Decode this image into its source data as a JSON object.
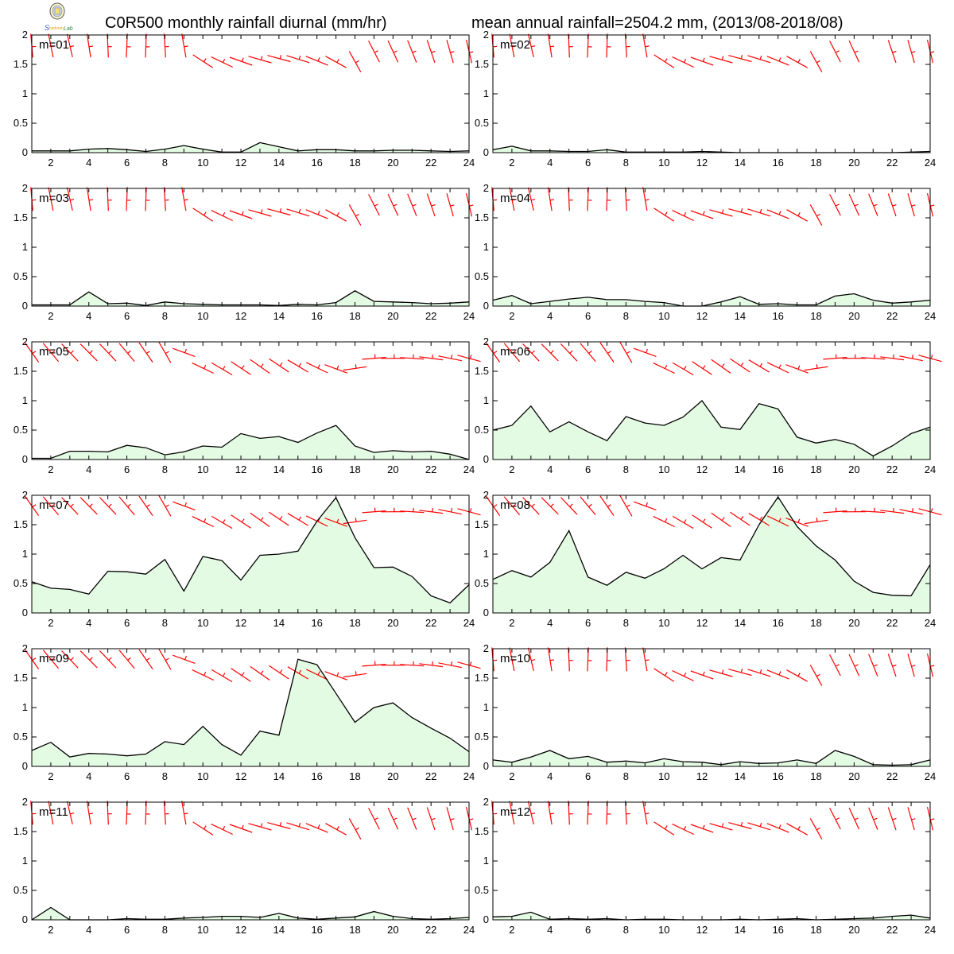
{
  "title_left": "C0R500 monthly rainfall diurnal (mm/hr)",
  "title_right": "mean annual rainfall=2504.2 mm, (2013/08-2018/08)",
  "colors": {
    "rain_fill": "#e3fbe3",
    "rain_line": "#000000",
    "wind": "#ff0000"
  },
  "chart_data": {
    "type": "area",
    "x": [
      1,
      2,
      3,
      4,
      5,
      6,
      7,
      8,
      9,
      10,
      11,
      12,
      13,
      14,
      15,
      16,
      17,
      18,
      19,
      20,
      21,
      22,
      23,
      24
    ],
    "x_ticks": [
      "2",
      "4",
      "6",
      "8",
      "10",
      "12",
      "14",
      "16",
      "18",
      "20",
      "22",
      "24"
    ],
    "y_ticks": [
      "0",
      "0.5",
      "1",
      "1.5",
      "2"
    ],
    "xlim": [
      1,
      24
    ],
    "ylim": [
      0,
      2
    ],
    "panels": [
      {
        "label": "m=01",
        "values": [
          0.03,
          0.03,
          0.03,
          0.06,
          0.07,
          0.05,
          0.02,
          0.06,
          0.12,
          0.06,
          0.01,
          0.01,
          0.17,
          0.1,
          0.03,
          0.05,
          0.05,
          0.03,
          0.03,
          0.04,
          0.04,
          0.03,
          0.02,
          0.03
        ]
      },
      {
        "label": "m=02",
        "values": [
          0.05,
          0.11,
          0.03,
          0.03,
          0.02,
          0.02,
          0.05,
          0.01,
          0.01,
          0.01,
          0.01,
          0.02,
          0.01,
          0.0,
          0.0,
          0.0,
          0.0,
          0.0,
          0.0,
          0.0,
          0.0,
          0.0,
          0.01,
          0.02
        ]
      },
      {
        "label": "m=03",
        "values": [
          0.02,
          0.02,
          0.02,
          0.24,
          0.04,
          0.05,
          0.01,
          0.07,
          0.04,
          0.03,
          0.02,
          0.02,
          0.02,
          0.01,
          0.03,
          0.02,
          0.06,
          0.26,
          0.08,
          0.07,
          0.06,
          0.04,
          0.05,
          0.07
        ]
      },
      {
        "label": "m=04",
        "values": [
          0.1,
          0.18,
          0.04,
          0.08,
          0.12,
          0.15,
          0.11,
          0.11,
          0.08,
          0.06,
          0.0,
          0.0,
          0.07,
          0.16,
          0.03,
          0.04,
          0.02,
          0.02,
          0.17,
          0.21,
          0.1,
          0.05,
          0.07,
          0.1
        ]
      },
      {
        "label": "m=05",
        "values": [
          0.02,
          0.02,
          0.14,
          0.14,
          0.13,
          0.24,
          0.2,
          0.08,
          0.13,
          0.23,
          0.21,
          0.44,
          0.36,
          0.39,
          0.29,
          0.45,
          0.58,
          0.23,
          0.12,
          0.15,
          0.13,
          0.14,
          0.09,
          0.0
        ]
      },
      {
        "label": "m=06",
        "values": [
          0.5,
          0.58,
          0.91,
          0.47,
          0.64,
          0.47,
          0.32,
          0.73,
          0.62,
          0.58,
          0.72,
          1.0,
          0.55,
          0.51,
          0.95,
          0.86,
          0.38,
          0.28,
          0.34,
          0.26,
          0.06,
          0.23,
          0.44,
          0.55
        ]
      },
      {
        "label": "m=07",
        "values": [
          0.53,
          0.42,
          0.4,
          0.32,
          0.71,
          0.7,
          0.66,
          0.91,
          0.37,
          0.96,
          0.89,
          0.56,
          0.98,
          1.0,
          1.05,
          1.56,
          1.96,
          1.28,
          0.77,
          0.78,
          0.62,
          0.29,
          0.17,
          0.48
        ]
      },
      {
        "label": "m=08",
        "values": [
          0.57,
          0.72,
          0.61,
          0.86,
          1.4,
          0.61,
          0.47,
          0.69,
          0.59,
          0.75,
          0.98,
          0.75,
          0.94,
          0.9,
          1.5,
          1.97,
          1.47,
          1.14,
          0.9,
          0.54,
          0.35,
          0.3,
          0.29,
          0.82
        ]
      },
      {
        "label": "m=09",
        "values": [
          0.27,
          0.41,
          0.16,
          0.22,
          0.21,
          0.18,
          0.21,
          0.42,
          0.37,
          0.68,
          0.37,
          0.19,
          0.6,
          0.53,
          1.82,
          1.73,
          1.24,
          0.75,
          1.0,
          1.08,
          0.83,
          0.65,
          0.48,
          0.25
        ]
      },
      {
        "label": "m=10",
        "values": [
          0.11,
          0.07,
          0.16,
          0.27,
          0.13,
          0.17,
          0.07,
          0.09,
          0.06,
          0.13,
          0.08,
          0.07,
          0.03,
          0.08,
          0.05,
          0.06,
          0.11,
          0.05,
          0.27,
          0.17,
          0.03,
          0.02,
          0.03,
          0.11
        ]
      },
      {
        "label": "m=11",
        "values": [
          0.0,
          0.21,
          0.0,
          0.0,
          0.0,
          0.02,
          0.01,
          0.01,
          0.03,
          0.04,
          0.06,
          0.06,
          0.04,
          0.11,
          0.03,
          0.01,
          0.03,
          0.05,
          0.14,
          0.06,
          0.02,
          0.01,
          0.02,
          0.04
        ]
      },
      {
        "label": "m=12",
        "values": [
          0.05,
          0.06,
          0.13,
          0.01,
          0.02,
          0.01,
          0.02,
          0.0,
          0.01,
          0.01,
          0.0,
          0.0,
          0.0,
          0.01,
          0.0,
          0.01,
          0.02,
          0.0,
          0.01,
          0.02,
          0.03,
          0.06,
          0.08,
          0.03
        ]
      }
    ]
  }
}
